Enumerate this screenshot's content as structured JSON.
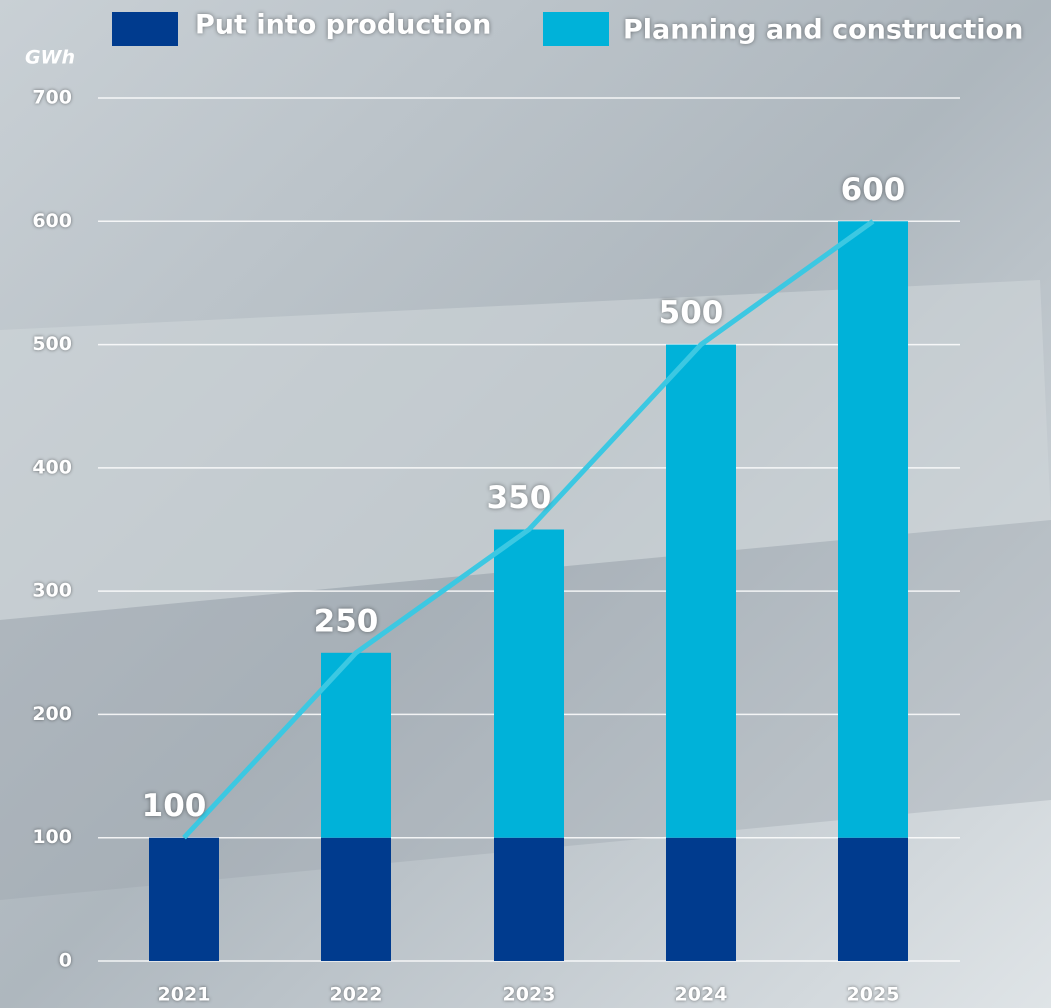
{
  "chart_data": {
    "type": "stacked-bar",
    "y_label": "GWh",
    "categories": [
      "2021",
      "2022",
      "2023",
      "2024",
      "2025"
    ],
    "series": [
      {
        "name": "Put into production",
        "color": "#003b8e",
        "values": [
          100,
          100,
          100,
          100,
          100
        ]
      },
      {
        "name": "Planning and construction",
        "color": "#00b2d9",
        "values": [
          0,
          150,
          250,
          400,
          500
        ]
      }
    ],
    "totals": {
      "color": "#3cc8e2",
      "values": [
        100,
        250,
        350,
        500,
        600
      ]
    },
    "ylim": [
      0,
      700
    ],
    "yticks": [
      0,
      100,
      200,
      300,
      400,
      500,
      600,
      700
    ],
    "grid": true
  }
}
